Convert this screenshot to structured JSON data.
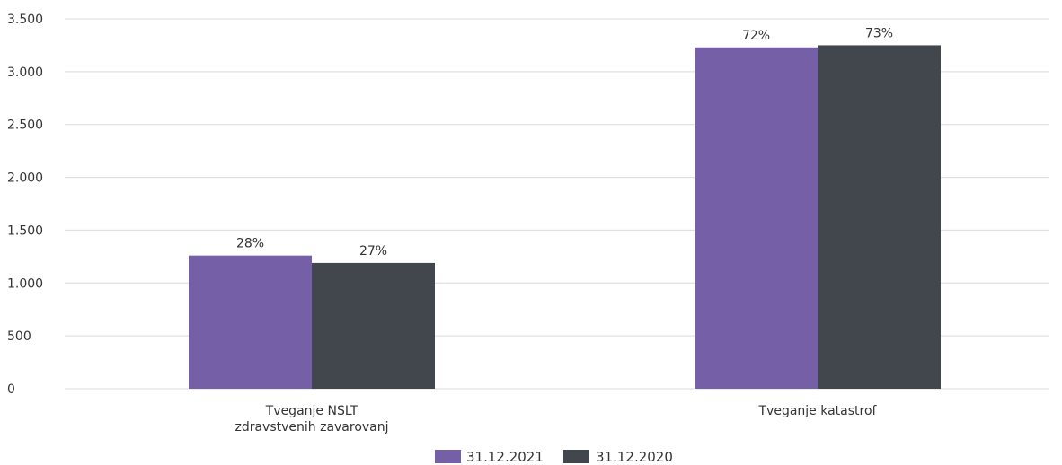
{
  "chart_data": {
    "type": "bar",
    "categories": [
      [
        "Tveganje NSLT",
        "zdravstvenih zavarovanj"
      ],
      [
        "Tveganje katastrof"
      ]
    ],
    "series": [
      {
        "name": "31.12.2021",
        "values": [
          1260,
          3230
        ],
        "labels": [
          "28%",
          "72%"
        ],
        "color": "#7560a8"
      },
      {
        "name": "31.12.2020",
        "values": [
          1190,
          3250
        ],
        "labels": [
          "27%",
          "73%"
        ],
        "color": "#42474e"
      }
    ],
    "ylim": [
      0,
      3500
    ],
    "yticks": [
      0,
      500,
      1000,
      1500,
      2000,
      2500,
      3000,
      3500
    ],
    "ytick_labels": [
      "0",
      "500",
      "1.000",
      "1.500",
      "2.000",
      "2.500",
      "3.000",
      "3.500"
    ],
    "title": "",
    "xlabel": "",
    "ylabel": "",
    "grid": true,
    "legend_position": "bottom-center",
    "grid_color": "#d9d9d9"
  }
}
